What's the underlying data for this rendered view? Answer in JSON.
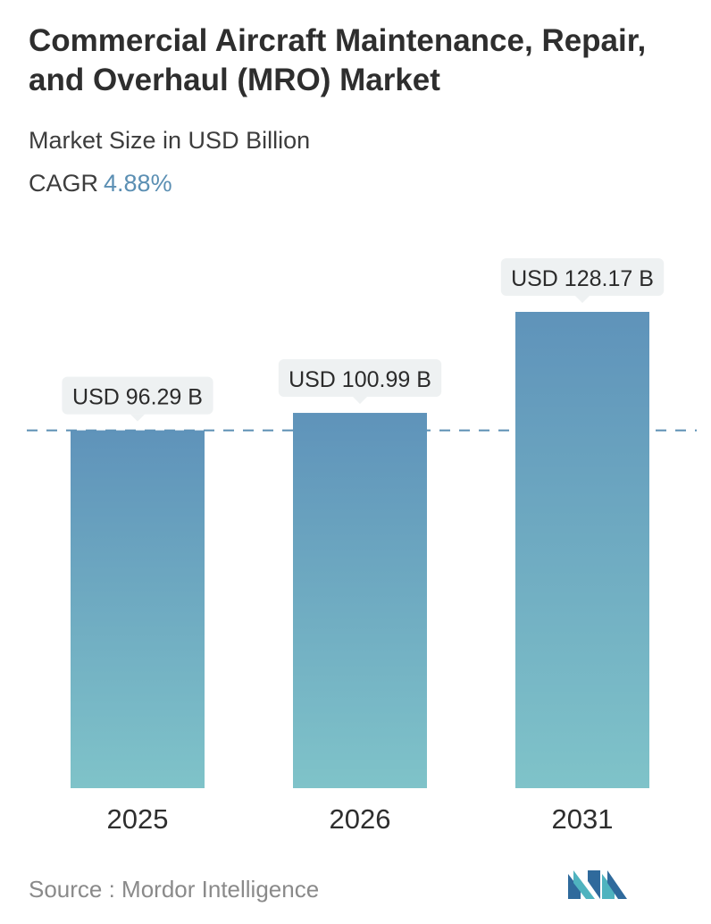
{
  "header": {
    "title": "Commercial Aircraft Maintenance, Repair, and Overhaul (MRO) Market",
    "subtitle": "Market Size in USD Billion",
    "cagr_label": "CAGR",
    "cagr_value": "4.88%"
  },
  "chart_data": {
    "type": "bar",
    "title": "Commercial Aircraft Maintenance, Repair, and Overhaul (MRO) Market",
    "subtitle": "Market Size in USD Billion",
    "categories": [
      "2025",
      "2026",
      "2031"
    ],
    "values": [
      96.29,
      100.99,
      128.17
    ],
    "data_labels": [
      "USD 96.29 B",
      "USD 100.99 B",
      "USD 128.17 B"
    ],
    "reference_line": 96.29,
    "grid": false,
    "colors": {
      "bar_top": "#5f93ba",
      "bar_bottom": "#7fc3c9",
      "dashed_line": "#5b8fb3",
      "label_bg": "#eef1f2"
    }
  },
  "footer": {
    "source": "Source :  Mordor Intelligence",
    "logo": "mordor-intelligence-logo",
    "logo_colors": [
      "#2f6a9c",
      "#4fb3bf"
    ]
  }
}
